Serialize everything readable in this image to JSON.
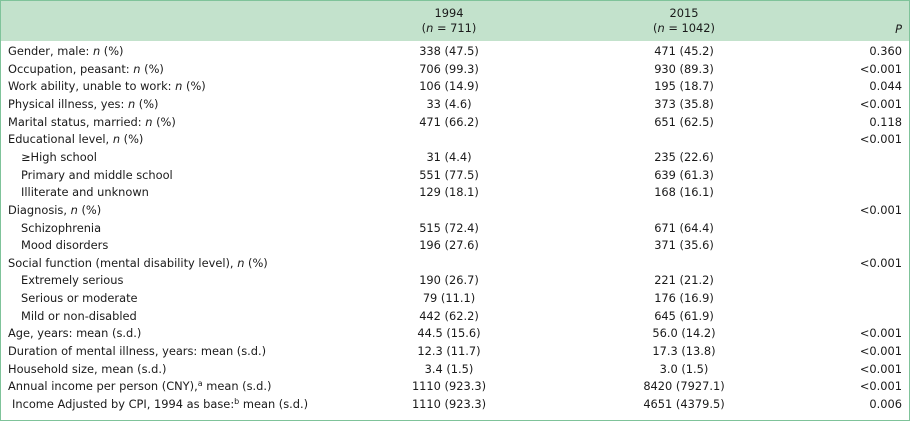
{
  "header": {
    "col1_year": "1994",
    "col1_n": "(n = 711)",
    "col2_year": "2015",
    "col2_n": "(n = 1042)",
    "p_label": "P"
  },
  "rows": [
    {
      "label": "Gender, male: n (%)",
      "v1": "338 (47.5)",
      "v2": "471 (45.2)",
      "p": "0.360"
    },
    {
      "label": "Occupation, peasant: n (%)",
      "v1": "706 (99.3)",
      "v2": "930 (89.3)",
      "p": "<0.001"
    },
    {
      "label": "Work ability, unable to work: n (%)",
      "v1": "106 (14.9)",
      "v2": "195 (18.7)",
      "p": "0.044"
    },
    {
      "label": "Physical illness, yes: n (%)",
      "v1": "33 (4.6)",
      "v2": "373 (35.8)",
      "p": "<0.001"
    },
    {
      "label": "Marital status, married: n (%)",
      "v1": "471 (66.2)",
      "v2": "651 (62.5)",
      "p": "0.118"
    },
    {
      "label": "Educational level, n (%)",
      "v1": "",
      "v2": "",
      "p": "<0.001"
    },
    {
      "label": "≥High school",
      "v1": "31 (4.4)",
      "v2": "235 (22.6)",
      "p": ""
    },
    {
      "label": "Primary and middle school",
      "v1": "551 (77.5)",
      "v2": "639 (61.3)",
      "p": ""
    },
    {
      "label": "Illiterate and unknown",
      "v1": "129 (18.1)",
      "v2": "168 (16.1)",
      "p": ""
    },
    {
      "label": "Diagnosis, n (%)",
      "v1": "",
      "v2": "",
      "p": "<0.001"
    },
    {
      "label": "Schizophrenia",
      "v1": "515 (72.4)",
      "v2": "671 (64.4)",
      "p": ""
    },
    {
      "label": "Mood disorders",
      "v1": "196 (27.6)",
      "v2": "371 (35.6)",
      "p": ""
    },
    {
      "label": "Social function (mental disability level), n (%)",
      "v1": "",
      "v2": "",
      "p": "<0.001"
    },
    {
      "label": "Extremely serious",
      "v1": "190 (26.7)",
      "v2": "221 (21.2)",
      "p": ""
    },
    {
      "label": "Serious or moderate",
      "v1": "79 (11.1)",
      "v2": "176 (16.9)",
      "p": ""
    },
    {
      "label": "Mild or non-disabled",
      "v1": "442 (62.2)",
      "v2": "645 (61.9)",
      "p": ""
    },
    {
      "label": "Age, years: mean (s.d.)",
      "v1": "44.5 (15.6)",
      "v2": "56.0 (14.2)",
      "p": "<0.001"
    },
    {
      "label": "Duration of mental illness, years: mean (s.d.)",
      "v1": "12.3 (11.7)",
      "v2": "17.3 (13.8)",
      "p": "<0.001"
    },
    {
      "label": "Household size, mean (s.d.)",
      "v1": "3.4 (1.5)",
      "v2": "3.0 (1.5)",
      "p": "<0.001"
    },
    {
      "label": "Annual income per person (CNY),",
      "sup": "a",
      "label_after": " mean (s.d.)",
      "v1": "1110 (923.3)",
      "v2": "8420 (7927.1)",
      "p": "<0.001"
    },
    {
      "label": "Income Adjusted by CPI, 1994 as base:",
      "sup": "b",
      "label_after": " mean (s.d.)",
      "v1": "1110 (923.3)",
      "v2": "4651 (4379.5)",
      "p": "0.006"
    }
  ]
}
